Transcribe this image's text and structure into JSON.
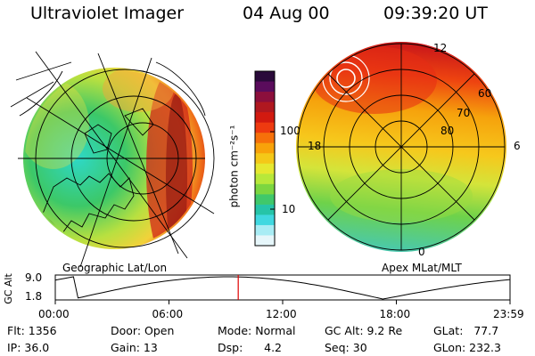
{
  "header": {
    "title": "Ultraviolet Imager",
    "date": "04 Aug 00",
    "time": "09:39:20 UT"
  },
  "left_panel": {
    "caption": "Geographic Lat/Lon"
  },
  "right_panel": {
    "caption": "Apex MLat/MLT",
    "mlt_labels": [
      "12",
      "18",
      "6",
      "0"
    ],
    "lat_labels": [
      "60",
      "70",
      "80"
    ]
  },
  "colorbar": {
    "unit_label": "photon cm⁻²s⁻¹",
    "tick_labels": [
      "100",
      "10"
    ],
    "colors": [
      "#2a0a3a",
      "#5a0c5c",
      "#8c0f3c",
      "#b01820",
      "#d21a10",
      "#ee3a10",
      "#f6700a",
      "#f8a20a",
      "#f4c818",
      "#e6e830",
      "#b8e83a",
      "#7cd640",
      "#40c86a",
      "#26c4a8",
      "#40d8e0",
      "#a8ecf4",
      "#e6f6fa"
    ]
  },
  "altitude_plot": {
    "ylabel": "GC Alt",
    "y_ticks": [
      "9.0",
      "1.8"
    ],
    "x_ticks": [
      "00:00",
      "06:00",
      "12:00",
      "18:00",
      "23:59"
    ],
    "marker_time_fraction": 0.4023
  },
  "info": {
    "flt": "Flt: 1356",
    "ip": "IP: 36.0",
    "door": "Door: Open",
    "gain": "Gain: 13",
    "mode": "Mode: Normal",
    "dsp": "Dsp:      4.2",
    "gcalt": "GC Alt: 9.2 Re",
    "seq": "Seq: 30",
    "glat": "GLat:   77.7",
    "glon": "GLon: 232.3"
  }
}
